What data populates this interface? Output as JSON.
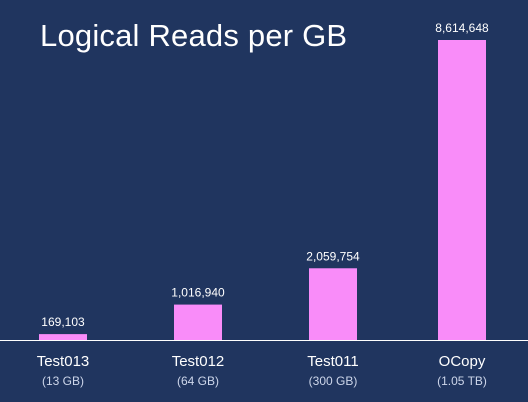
{
  "slide": {
    "title": "Logical Reads per GB"
  },
  "colors": {
    "background": "#20355f",
    "bar": "#f98cf9",
    "axis": "#ffffff",
    "text": "#ffffff",
    "subtext": "#cdd6ea"
  },
  "chart_data": {
    "type": "bar",
    "title": "Logical Reads per GB",
    "xlabel": "",
    "ylabel": "",
    "categories": [
      "Test013",
      "Test012",
      "Test011",
      "OCopy"
    ],
    "subcategories": [
      "(13 GB)",
      "(64 GB)",
      "(300 GB)",
      "(1.05 TB)"
    ],
    "values": [
      169103,
      1016940,
      2059754,
      8614648
    ],
    "value_labels": [
      "169,103",
      "1,016,940",
      "2,059,754",
      "8,614,648"
    ],
    "ylim": [
      0,
      8614648
    ],
    "grid": false,
    "legend": "none"
  }
}
